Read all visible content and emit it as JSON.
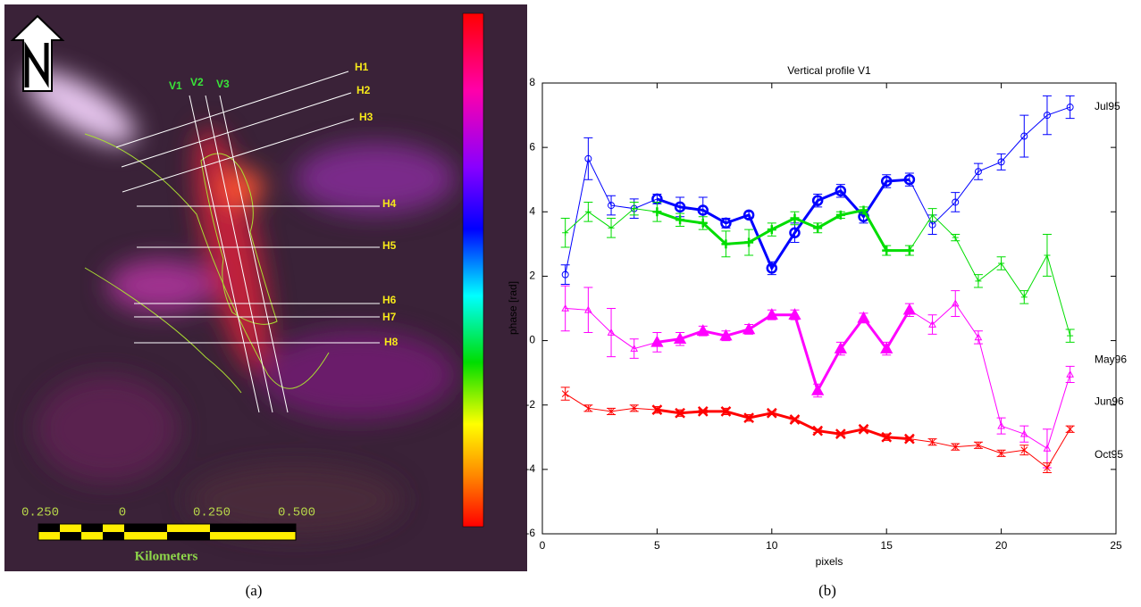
{
  "panel_a": {
    "profile_labels": [
      "H1",
      "H2",
      "H3",
      "H4",
      "H5",
      "H6",
      "H7",
      "H8",
      "V1",
      "V2",
      "V3"
    ],
    "scale_labels": [
      "0.250",
      "0",
      "0.250",
      "0.500"
    ],
    "scale_unit": "Kilometers"
  },
  "captions": [
    "(a)",
    "(b)"
  ],
  "chart_data": {
    "type": "errorbar-line",
    "title": "Vertical profile V1",
    "x_label": "pixels",
    "y_label": "phase [rad]",
    "xlim": [
      0,
      25
    ],
    "xticks": [
      0,
      5,
      10,
      15,
      20,
      25
    ],
    "ylim": [
      -6,
      8
    ],
    "yticks": [
      -6,
      -4,
      -2,
      0,
      2,
      4,
      6,
      8
    ],
    "x": [
      1,
      2,
      3,
      4,
      5,
      6,
      7,
      8,
      9,
      10,
      11,
      12,
      13,
      14,
      15,
      16,
      17,
      18,
      19,
      20,
      21,
      22,
      23
    ],
    "series": [
      {
        "name": "Jul95",
        "color": "#0000ff",
        "marker": "circle",
        "values": [
          2.05,
          5.65,
          4.2,
          4.1,
          4.4,
          4.15,
          4.05,
          3.65,
          3.9,
          2.25,
          3.35,
          4.35,
          4.65,
          3.85,
          4.95,
          5.0,
          3.6,
          4.3,
          5.25,
          5.55,
          6.35,
          7.0,
          7.25
        ],
        "errors": [
          0.3,
          0.65,
          0.3,
          0.3,
          0.15,
          0.3,
          0.4,
          0.15,
          0.1,
          0.2,
          0.3,
          0.2,
          0.2,
          0.2,
          0.2,
          0.2,
          0.3,
          0.3,
          0.25,
          0.25,
          0.65,
          0.6,
          0.35
        ]
      },
      {
        "name": "May96",
        "color": "#00dd00",
        "marker": "plus",
        "values": [
          3.35,
          4.0,
          3.5,
          4.1,
          4.0,
          3.75,
          3.65,
          3.0,
          3.05,
          3.45,
          3.8,
          3.5,
          3.9,
          4.05,
          2.8,
          2.8,
          3.9,
          3.2,
          1.85,
          2.4,
          1.35,
          2.65,
          0.15
        ],
        "errors": [
          0.45,
          0.3,
          0.3,
          0.2,
          0.3,
          0.2,
          0.2,
          0.4,
          0.4,
          0.2,
          0.2,
          0.15,
          0.1,
          0.1,
          0.15,
          0.15,
          0.2,
          0.1,
          0.2,
          0.2,
          0.2,
          0.65,
          0.2
        ]
      },
      {
        "name": "Jun96",
        "color": "#ff00ff",
        "marker": "triangle",
        "values": [
          1.0,
          0.95,
          0.25,
          -0.25,
          -0.05,
          0.05,
          0.3,
          0.15,
          0.35,
          0.8,
          0.8,
          -1.55,
          -0.25,
          0.7,
          -0.25,
          0.95,
          0.5,
          1.15,
          0.1,
          -2.65,
          -2.9,
          -3.35,
          -1.05
        ],
        "errors": [
          0.7,
          0.7,
          0.75,
          0.3,
          0.3,
          0.2,
          0.15,
          0.15,
          0.15,
          0.15,
          0.15,
          0.2,
          0.2,
          0.15,
          0.2,
          0.2,
          0.3,
          0.4,
          0.2,
          0.25,
          0.25,
          0.6,
          0.25
        ]
      },
      {
        "name": "Oct95",
        "color": "#ff0000",
        "marker": "x",
        "values": [
          -1.65,
          -2.1,
          -2.2,
          -2.1,
          -2.15,
          -2.25,
          -2.2,
          -2.2,
          -2.4,
          -2.25,
          -2.45,
          -2.8,
          -2.9,
          -2.75,
          -3.0,
          -3.05,
          -3.15,
          -3.3,
          -3.25,
          -3.5,
          -3.4,
          -3.95,
          -2.75
        ],
        "errors": [
          0.2,
          0.1,
          0.1,
          0.1,
          0.1,
          0.1,
          0.05,
          0.1,
          0.1,
          0.05,
          0.05,
          0.05,
          0.05,
          0.05,
          0.1,
          0.05,
          0.1,
          0.1,
          0.1,
          0.1,
          0.15,
          0.15,
          0.1
        ]
      }
    ]
  }
}
